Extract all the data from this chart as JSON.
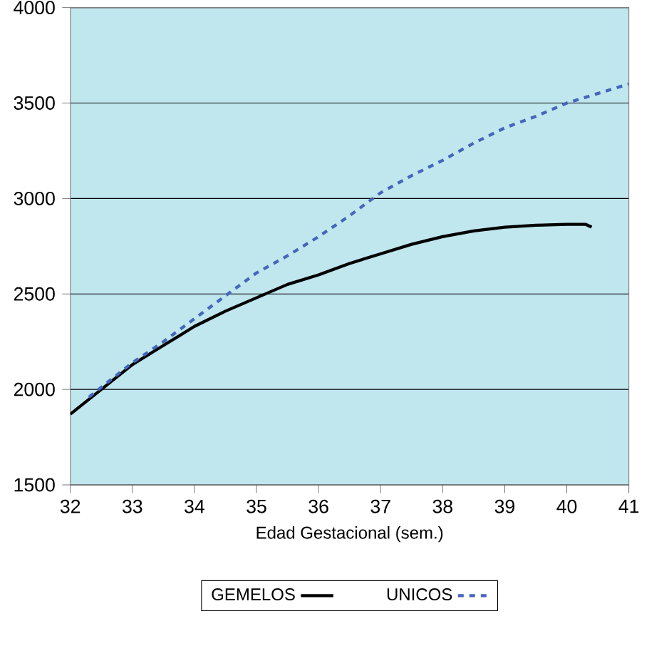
{
  "chart_data": {
    "type": "line",
    "xlabel": "Edad Gestacional (sem.)",
    "xlim": [
      32,
      41
    ],
    "xticks": [
      32,
      33,
      34,
      35,
      36,
      37,
      38,
      39,
      40,
      41
    ],
    "ylim": [
      1500,
      4000
    ],
    "yticks": [
      1500,
      2000,
      2500,
      3000,
      3500,
      4000
    ],
    "grid": "y",
    "legend": "bottom",
    "marker": "none",
    "series": [
      {
        "name": "GEMELOS",
        "color": "#000000",
        "line_style": "solid",
        "x": [
          32,
          32.5,
          33,
          33.5,
          34,
          34.5,
          35,
          35.5,
          36,
          36.5,
          37,
          37.5,
          38,
          38.5,
          39,
          39.5,
          40,
          40.3,
          40.4
        ],
        "values": [
          1870,
          2000,
          2130,
          2230,
          2330,
          2410,
          2480,
          2550,
          2600,
          2660,
          2710,
          2760,
          2800,
          2830,
          2850,
          2860,
          2865,
          2865,
          2850
        ]
      },
      {
        "name": "UNICOS",
        "color": "#4466bb",
        "line_style": "dashed",
        "x": [
          32.3,
          33,
          33.5,
          34,
          34.5,
          35,
          35.5,
          36,
          36.5,
          37,
          37.5,
          38,
          38.5,
          39,
          39.5,
          40,
          40.5,
          41
        ],
        "values": [
          1960,
          2140,
          2250,
          2370,
          2490,
          2610,
          2700,
          2800,
          2910,
          3030,
          3120,
          3200,
          3290,
          3370,
          3430,
          3500,
          3550,
          3600
        ]
      }
    ]
  }
}
